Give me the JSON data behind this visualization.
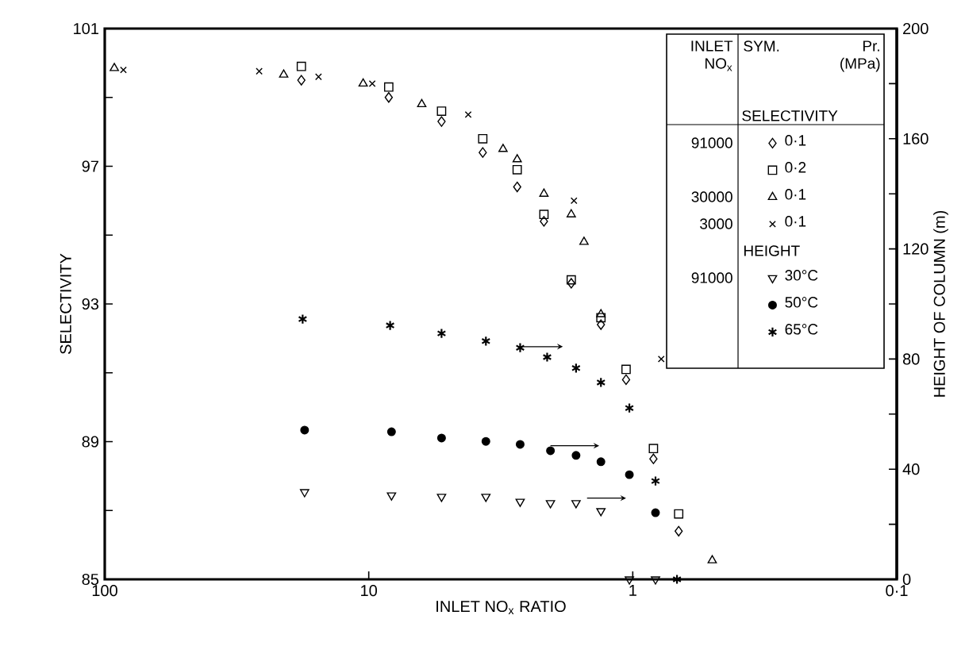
{
  "chart_data": {
    "type": "scatter",
    "xlabel": "INLET NO$_{x}$ RATIO",
    "ylabel": "SELECTIVITY",
    "y2label": "HEIGHT OF COLUMN (m)",
    "log": "x",
    "xlim": [
      100,
      0.1
    ],
    "xticks": [
      100,
      10,
      1,
      {
        "value": 0.1,
        "label": "0·1"
      }
    ],
    "ylim": [
      85,
      101
    ],
    "yticks": [
      85,
      {
        "value": 87,
        "label": null
      },
      89,
      {
        "value": 91,
        "label": null
      },
      93,
      {
        "value": 95,
        "label": null
      },
      97,
      {
        "value": 99,
        "label": null
      },
      101
    ],
    "y2lim": [
      0,
      200
    ],
    "y2ticks": [
      0,
      {
        "value": 20,
        "label": null
      },
      40,
      {
        "value": 60,
        "label": null
      },
      80,
      {
        "value": 100,
        "label": null
      },
      120,
      {
        "value": 140,
        "label": null
      },
      160,
      {
        "value": 180,
        "label": null
      },
      200
    ],
    "legend": "top right",
    "annotations": [
      "INLET NO$_{x}$",
      "SYM.",
      "Pr. (MPa)",
      "SELECTIVITY",
      "HEIGHT",
      "91000",
      "30000",
      "3000",
      "91000"
    ],
    "series": [
      {
        "name": "0·1",
        "color": "#000000",
        "marker": "diamond",
        "x": [
          18,
          8.4,
          5.3,
          3.7,
          2.74,
          2.17,
          1.71,
          1.32,
          1.06,
          0.835,
          0.67
        ],
        "values": [
          99.5,
          99.0,
          98.3,
          97.4,
          96.4,
          95.4,
          93.6,
          92.4,
          90.8,
          88.5,
          86.4
        ]
      },
      {
        "name": "0·2",
        "color": "#000000",
        "marker": "square",
        "x": [
          18,
          8.4,
          5.3,
          3.7,
          2.74,
          2.17,
          1.71,
          1.32,
          1.06,
          0.835,
          0.67
        ],
        "values": [
          99.9,
          99.3,
          98.6,
          97.8,
          96.9,
          95.6,
          93.7,
          92.6,
          91.1,
          88.8,
          86.9
        ]
      },
      {
        "name": "0·1",
        "color": "#000000",
        "marker": "triangle",
        "x": [
          92,
          21,
          10.5,
          6.3,
          3.1,
          2.74,
          2.17,
          1.71,
          1.53,
          1.32,
          0.5
        ],
        "values": [
          99.85,
          99.66,
          99.4,
          98.8,
          97.5,
          97.2,
          96.2,
          95.6,
          94.8,
          92.7,
          85.55
        ]
      },
      {
        "name": "0·1",
        "color": "#000000",
        "marker": "cross",
        "x": [
          85,
          26,
          15.5,
          9.7,
          4.2,
          1.67,
          0.78
        ],
        "values": [
          99.8,
          99.76,
          99.6,
          99.4,
          98.5,
          96.0,
          91.4
        ]
      },
      {
        "name": "30°C",
        "color": "#000000",
        "marker": "triangle-down",
        "axis": "y2",
        "x": [
          17.5,
          8.2,
          5.3,
          3.6,
          2.67,
          2.05,
          1.64,
          1.32,
          1.03,
          0.82
        ],
        "values": [
          31.7,
          30.5,
          30.0,
          30.0,
          28.2,
          27.7,
          27.7,
          24.8,
          0,
          0
        ]
      },
      {
        "name": "50°C",
        "color": "#000000",
        "marker": "circle",
        "axis": "y2",
        "x": [
          17.5,
          8.2,
          5.3,
          3.6,
          2.67,
          2.05,
          1.64,
          1.32,
          1.03,
          0.82
        ],
        "values": [
          54.2,
          53.6,
          51.3,
          50.1,
          49.0,
          46.7,
          45.0,
          42.7,
          38.0,
          24.2
        ]
      },
      {
        "name": "65°C",
        "color": "#000000",
        "axis": "y2",
        "x": [
          17.8,
          8.3,
          5.3,
          3.6,
          2.67,
          2.11,
          1.64,
          1.32,
          1.03,
          0.82,
          0.68
        ],
        "values": [
          94.5,
          92.2,
          89.3,
          86.5,
          84.1,
          80.7,
          76.7,
          71.5,
          62.2,
          35.7,
          0
        ]
      }
    ]
  }
}
